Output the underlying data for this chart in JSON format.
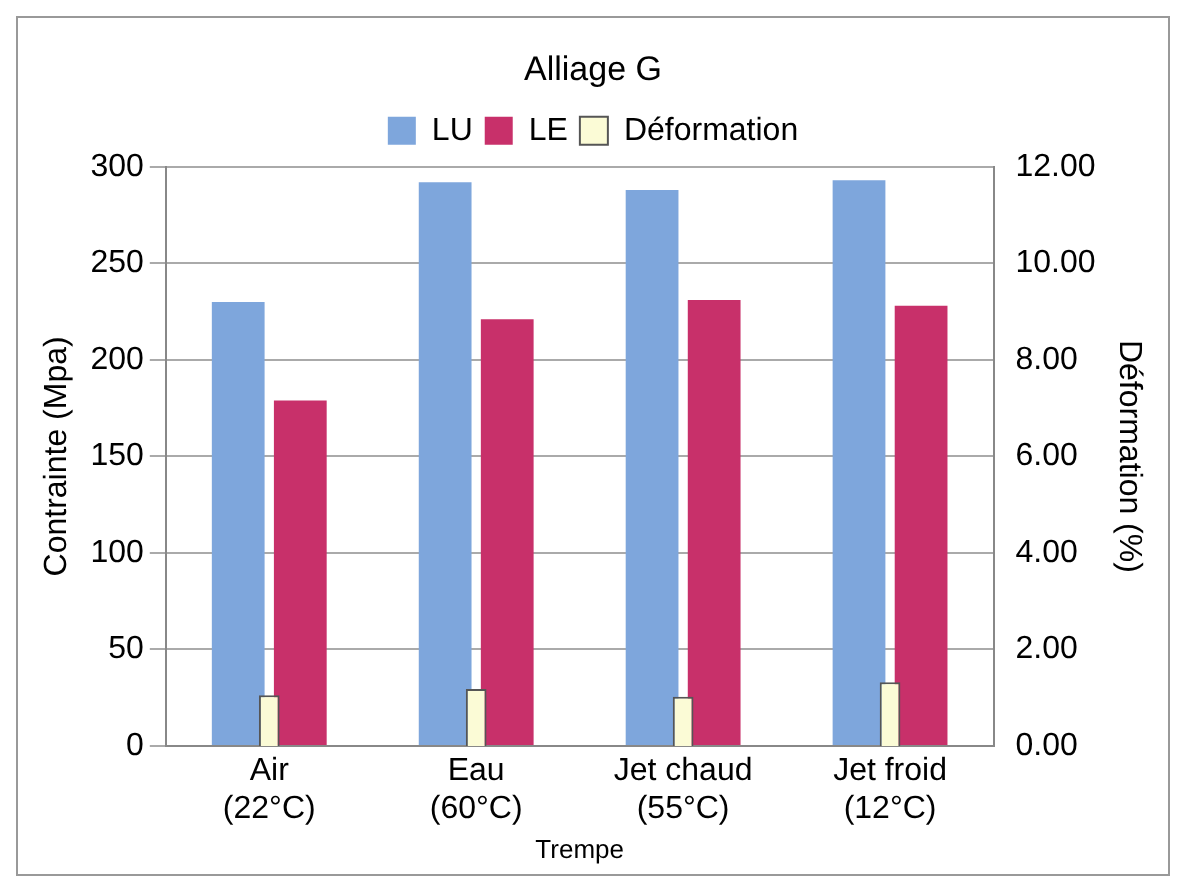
{
  "chart_data": {
    "type": "bar",
    "title": "Alliage G",
    "xlabel": "Trempe",
    "ylabel": "Contrainte (Mpa)",
    "y2label": "Déformation (%)",
    "categories": [
      "Air\n(22°C)",
      "Eau\n(60°C)",
      "Jet chaud\n(55°C)",
      "Jet froid\n(12°C)"
    ],
    "series": [
      {
        "name": "LU",
        "color": "#7ea6dc",
        "values": [
          230,
          292,
          288,
          293
        ]
      },
      {
        "name": "LE",
        "color": "#c8306a",
        "values": [
          179,
          221,
          231,
          228
        ]
      },
      {
        "name": "Déformation",
        "color": "#fbfbd6",
        "values": [
          1.05,
          1.18,
          1.02,
          1.32
        ],
        "axis": "y2"
      }
    ],
    "ylim": [
      0,
      300
    ],
    "yticks": [
      0,
      50,
      100,
      150,
      200,
      250,
      300
    ],
    "y2lim": [
      0,
      12
    ],
    "y2ticks": [
      {
        "value": 0,
        "label": "0.00"
      },
      {
        "value": 2,
        "label": "2.00"
      },
      {
        "value": 4,
        "label": "4.00"
      },
      {
        "value": 6,
        "label": "6.00"
      },
      {
        "value": 8,
        "label": "8.00"
      },
      {
        "value": 10,
        "label": "10.00"
      },
      {
        "value": 12,
        "label": "12.00"
      }
    ],
    "grid": "y",
    "legend": "top"
  }
}
